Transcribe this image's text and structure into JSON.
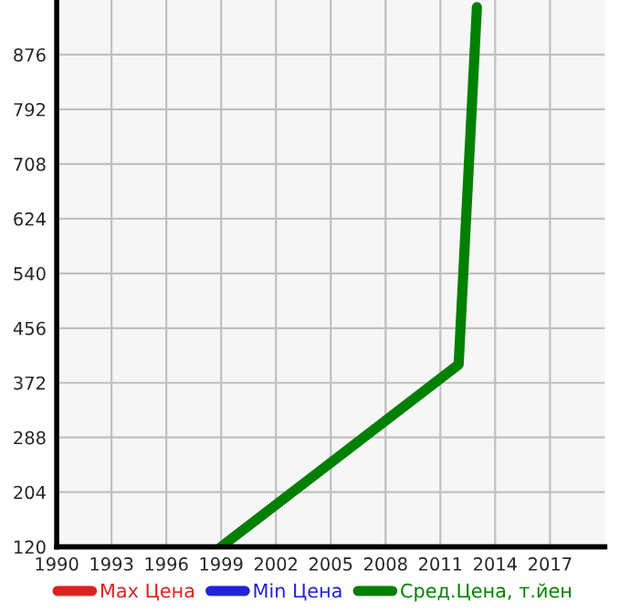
{
  "chart_data": {
    "type": "line",
    "x": [
      1999,
      2012,
      2013
    ],
    "series": [
      {
        "name": "Max Цена",
        "color": "#dd2222",
        "values": [
          null,
          null,
          null
        ]
      },
      {
        "name": "Min Цена",
        "color": "#2222dd",
        "values": [
          null,
          null,
          null
        ]
      },
      {
        "name": "Сред.Цена, т.йен",
        "color": "#008000",
        "values": [
          120,
          400,
          949
        ]
      }
    ],
    "xlim": [
      1990,
      2020
    ],
    "xticks": [
      1990,
      1993,
      1996,
      1999,
      2002,
      2005,
      2008,
      2011,
      2014,
      2017
    ],
    "ylim": [
      120,
      960
    ],
    "yticks": [
      120,
      204,
      288,
      372,
      456,
      540,
      624,
      708,
      792,
      876
    ],
    "grid": true,
    "legend": "bottom",
    "marker": "none",
    "line_style": "solid"
  }
}
